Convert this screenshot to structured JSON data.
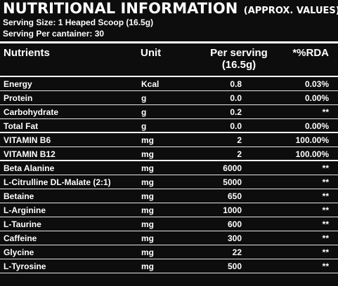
{
  "title": {
    "main": "NUTRITIONAL INFORMATION",
    "sub": "(APPROX. VALUES)"
  },
  "serving_size": "Serving Size: 1 Heaped Scoop (16.5g)",
  "servings_per_container": "Serving Per cantainer: 30",
  "columns": {
    "nutrients": "Nutrients",
    "unit": "Unit",
    "per_serving_line1": "Per serving",
    "per_serving_line2": "(16.5g)",
    "rda": "*%RDA"
  },
  "rows": [
    {
      "name": "Energy",
      "unit": "Kcal",
      "per_serving": "0.8",
      "rda": "0.03%"
    },
    {
      "name": "Protein",
      "unit": "g",
      "per_serving": "0.0",
      "rda": "0.00%"
    },
    {
      "name": "Carbohydrate",
      "unit": "g",
      "per_serving": "0.2",
      "rda": "**"
    },
    {
      "name": "Total Fat",
      "unit": "g",
      "per_serving": "0.0",
      "rda": "0.00%"
    },
    {
      "name": "VITAMIN B6",
      "unit": "mg",
      "per_serving": "2",
      "rda": "100.00%"
    },
    {
      "name": "VITAMIN B12",
      "unit": "mg",
      "per_serving": "2",
      "rda": "100.00%"
    },
    {
      "name": "Beta Alanine",
      "unit": "mg",
      "per_serving": "6000",
      "rda": "**"
    },
    {
      "name": "L-Citrulline DL-Malate (2:1)",
      "unit": "mg",
      "per_serving": "5000",
      "rda": "**"
    },
    {
      "name": "Betaine",
      "unit": "mg",
      "per_serving": "650",
      "rda": "**"
    },
    {
      "name": "L-Arginine",
      "unit": "mg",
      "per_serving": "1000",
      "rda": "**"
    },
    {
      "name": "L-Taurine",
      "unit": "mg",
      "per_serving": "600",
      "rda": "**"
    },
    {
      "name": "Caffeine",
      "unit": "mg",
      "per_serving": "300",
      "rda": "**"
    },
    {
      "name": "Glycine",
      "unit": "mg",
      "per_serving": "22",
      "rda": "**"
    },
    {
      "name": "L-Tyrosine",
      "unit": "mg",
      "per_serving": "500",
      "rda": "**"
    }
  ],
  "colors": {
    "background": "#0d0d0d",
    "text": "#ffffff",
    "rule": "#ffffff"
  }
}
